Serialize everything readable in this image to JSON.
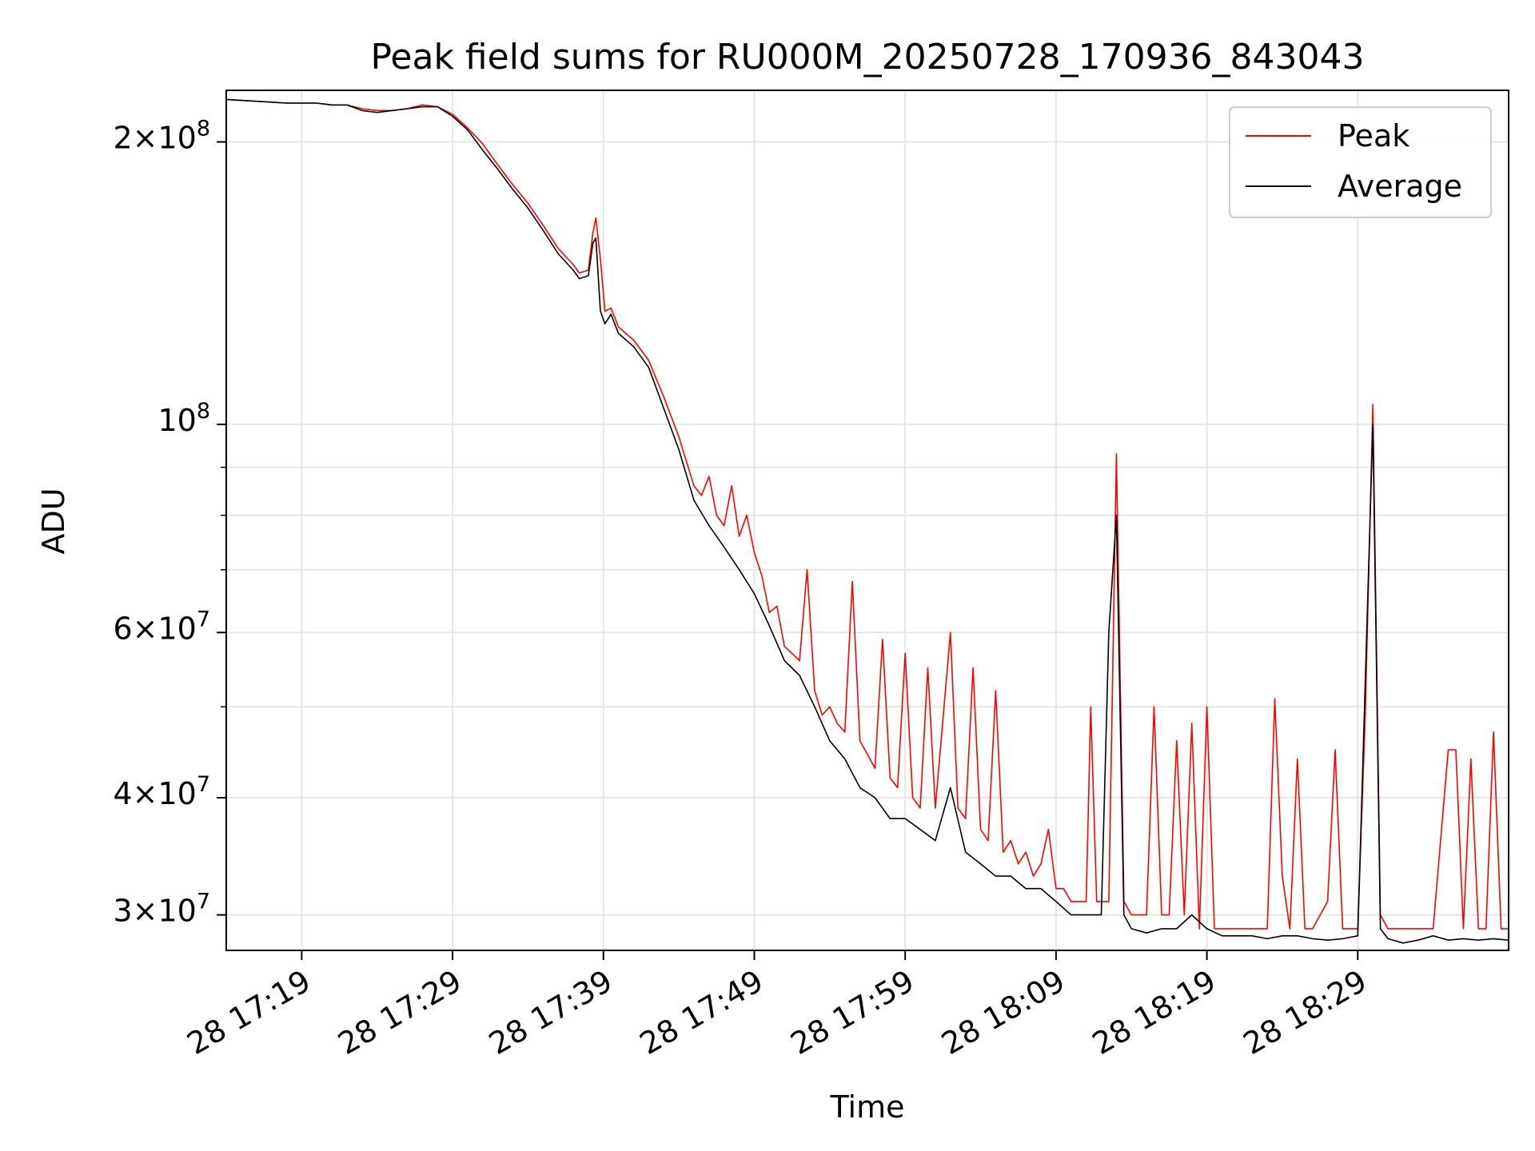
{
  "chart_data": {
    "type": "line",
    "title": "Peak field sums for RU000M_20250728_170936_843043",
    "xlabel": "Time",
    "ylabel": "ADU",
    "yscale": "log",
    "xlim_minutes": [
      -5,
      80
    ],
    "ylim": [
      27500000,
      227000000
    ],
    "grid": true,
    "legend_position": "top-right",
    "x_ticks": [
      {
        "minute": 0,
        "label": "28 17:19"
      },
      {
        "minute": 10,
        "label": "28 17:29"
      },
      {
        "minute": 20,
        "label": "28 17:39"
      },
      {
        "minute": 30,
        "label": "28 17:49"
      },
      {
        "minute": 40,
        "label": "28 17:59"
      },
      {
        "minute": 50,
        "label": "28 18:09"
      },
      {
        "minute": 60,
        "label": "28 18:19"
      },
      {
        "minute": 70,
        "label": "28 18:29"
      }
    ],
    "y_ticks": [
      {
        "value": 30000000,
        "mant": "3",
        "exp": "7"
      },
      {
        "value": 40000000,
        "mant": "4",
        "exp": "7"
      },
      {
        "value": 60000000,
        "mant": "6",
        "exp": "7"
      },
      {
        "value": 100000000,
        "mant": "",
        "exp": "8"
      },
      {
        "value": 200000000,
        "mant": "2",
        "exp": "8"
      }
    ],
    "y_minor_ticks": [
      50000000,
      70000000,
      80000000,
      90000000
    ],
    "series": [
      {
        "name": "Peak",
        "color": "#ff0000",
        "points": [
          [
            -5,
            222
          ],
          [
            -3,
            221
          ],
          [
            -1,
            220
          ],
          [
            1,
            220
          ],
          [
            2,
            219
          ],
          [
            3,
            219
          ],
          [
            4,
            217
          ],
          [
            5,
            216
          ],
          [
            6,
            216
          ],
          [
            7,
            217
          ],
          [
            8,
            219
          ],
          [
            9,
            218
          ],
          [
            10,
            214
          ],
          [
            11,
            207
          ],
          [
            12,
            199
          ],
          [
            13,
            189
          ],
          [
            14,
            180
          ],
          [
            15,
            172
          ],
          [
            16,
            163
          ],
          [
            17,
            154
          ],
          [
            18,
            148
          ],
          [
            18.4,
            145
          ],
          [
            19,
            146
          ],
          [
            19.3,
            160
          ],
          [
            19.5,
            166
          ],
          [
            19.8,
            150
          ],
          [
            20.1,
            132
          ],
          [
            20.5,
            133
          ],
          [
            21,
            127
          ],
          [
            22,
            123
          ],
          [
            23,
            117
          ],
          [
            24,
            107
          ],
          [
            25,
            97
          ],
          [
            26,
            86
          ],
          [
            26.5,
            84
          ],
          [
            27,
            88
          ],
          [
            27.5,
            80
          ],
          [
            28,
            78
          ],
          [
            28.5,
            86
          ],
          [
            29,
            76
          ],
          [
            29.5,
            80
          ],
          [
            30,
            73
          ],
          [
            30.5,
            69
          ],
          [
            31,
            63
          ],
          [
            31.5,
            64
          ],
          [
            32,
            58
          ],
          [
            32.5,
            57
          ],
          [
            33,
            56
          ],
          [
            33.5,
            70
          ],
          [
            34,
            52
          ],
          [
            34.5,
            49
          ],
          [
            35,
            50
          ],
          [
            35.5,
            48
          ],
          [
            36,
            47
          ],
          [
            36.5,
            68
          ],
          [
            37,
            46
          ],
          [
            38,
            43
          ],
          [
            38.5,
            59
          ],
          [
            39,
            42
          ],
          [
            39.5,
            41
          ],
          [
            40,
            57
          ],
          [
            40.5,
            40
          ],
          [
            41,
            39
          ],
          [
            41.5,
            55
          ],
          [
            42,
            39
          ],
          [
            43,
            60
          ],
          [
            43.5,
            39
          ],
          [
            44,
            38
          ],
          [
            44.5,
            55
          ],
          [
            45,
            37
          ],
          [
            45.5,
            36
          ],
          [
            46,
            52
          ],
          [
            46.5,
            35
          ],
          [
            47,
            36
          ],
          [
            47.5,
            34
          ],
          [
            48,
            35
          ],
          [
            48.5,
            33
          ],
          [
            49,
            34
          ],
          [
            49.5,
            37
          ],
          [
            50,
            32
          ],
          [
            50.5,
            32
          ],
          [
            51,
            31
          ],
          [
            51.5,
            31
          ],
          [
            52,
            31
          ],
          [
            52.3,
            50
          ],
          [
            52.7,
            31
          ],
          [
            53,
            31
          ],
          [
            53.5,
            31
          ],
          [
            54,
            93
          ],
          [
            54.5,
            31
          ],
          [
            55,
            30
          ],
          [
            55.5,
            30
          ],
          [
            56,
            30
          ],
          [
            56.5,
            50
          ],
          [
            57,
            30
          ],
          [
            57.5,
            30
          ],
          [
            58,
            46
          ],
          [
            58.5,
            30
          ],
          [
            59,
            48
          ],
          [
            59.5,
            29
          ],
          [
            60,
            50
          ],
          [
            60.5,
            29
          ],
          [
            61,
            29
          ],
          [
            62,
            29
          ],
          [
            63,
            29
          ],
          [
            64,
            29
          ],
          [
            64.5,
            51
          ],
          [
            65,
            33
          ],
          [
            65.5,
            29
          ],
          [
            66,
            44
          ],
          [
            66.5,
            29
          ],
          [
            67,
            29
          ],
          [
            68,
            31
          ],
          [
            68.5,
            45
          ],
          [
            69,
            29
          ],
          [
            70,
            29
          ],
          [
            70.5,
            49
          ],
          [
            71,
            105
          ],
          [
            71.5,
            30
          ],
          [
            72,
            29
          ],
          [
            73,
            29
          ],
          [
            74,
            29
          ],
          [
            75,
            29
          ],
          [
            76,
            45
          ],
          [
            76.5,
            45
          ],
          [
            77,
            29
          ],
          [
            77.5,
            44
          ],
          [
            78,
            29
          ],
          [
            78.5,
            29
          ],
          [
            79,
            47
          ],
          [
            79.5,
            29
          ],
          [
            80,
            29
          ]
        ]
      },
      {
        "name": "Average",
        "color": "#000000",
        "points": [
          [
            -5,
            222
          ],
          [
            -3,
            221
          ],
          [
            -1,
            220
          ],
          [
            1,
            220
          ],
          [
            2,
            219
          ],
          [
            3,
            219
          ],
          [
            4,
            216
          ],
          [
            5,
            215
          ],
          [
            6,
            216
          ],
          [
            7,
            217
          ],
          [
            8,
            218
          ],
          [
            9,
            218
          ],
          [
            10,
            213
          ],
          [
            11,
            206
          ],
          [
            12,
            196
          ],
          [
            13,
            187
          ],
          [
            14,
            178
          ],
          [
            15,
            170
          ],
          [
            16,
            161
          ],
          [
            17,
            152
          ],
          [
            18,
            146
          ],
          [
            18.4,
            143
          ],
          [
            19,
            144
          ],
          [
            19.3,
            156
          ],
          [
            19.5,
            158
          ],
          [
            19.8,
            132
          ],
          [
            20.1,
            128
          ],
          [
            20.5,
            131
          ],
          [
            21,
            125
          ],
          [
            22,
            121
          ],
          [
            23,
            115
          ],
          [
            24,
            104
          ],
          [
            25,
            94
          ],
          [
            26,
            83
          ],
          [
            27,
            78
          ],
          [
            28,
            74
          ],
          [
            29,
            70
          ],
          [
            30,
            66
          ],
          [
            31,
            61
          ],
          [
            32,
            56
          ],
          [
            33,
            54
          ],
          [
            34,
            50
          ],
          [
            35,
            46
          ],
          [
            36,
            44
          ],
          [
            37,
            41
          ],
          [
            38,
            40
          ],
          [
            39,
            38
          ],
          [
            40,
            38
          ],
          [
            41,
            37
          ],
          [
            42,
            36
          ],
          [
            43,
            41
          ],
          [
            44,
            35
          ],
          [
            45,
            34
          ],
          [
            46,
            33
          ],
          [
            47,
            33
          ],
          [
            48,
            32
          ],
          [
            49,
            32
          ],
          [
            50,
            31
          ],
          [
            51,
            30
          ],
          [
            52,
            30
          ],
          [
            53,
            30
          ],
          [
            53.5,
            60
          ],
          [
            54,
            80
          ],
          [
            54.5,
            30
          ],
          [
            55,
            29
          ],
          [
            56,
            28.7
          ],
          [
            57,
            29
          ],
          [
            58,
            29
          ],
          [
            59,
            30
          ],
          [
            60,
            29
          ],
          [
            61,
            28.5
          ],
          [
            62,
            28.5
          ],
          [
            63,
            28.5
          ],
          [
            64,
            28.3
          ],
          [
            65,
            28.5
          ],
          [
            66,
            28.5
          ],
          [
            67,
            28.3
          ],
          [
            68,
            28.2
          ],
          [
            69,
            28.3
          ],
          [
            70,
            28.5
          ],
          [
            71,
            100
          ],
          [
            71.5,
            29
          ],
          [
            72,
            28.3
          ],
          [
            73,
            28
          ],
          [
            74,
            28.2
          ],
          [
            75,
            28.5
          ],
          [
            76,
            28.2
          ],
          [
            77,
            28.3
          ],
          [
            78,
            28.2
          ],
          [
            79,
            28.3
          ],
          [
            80,
            28.2
          ]
        ]
      }
    ]
  }
}
